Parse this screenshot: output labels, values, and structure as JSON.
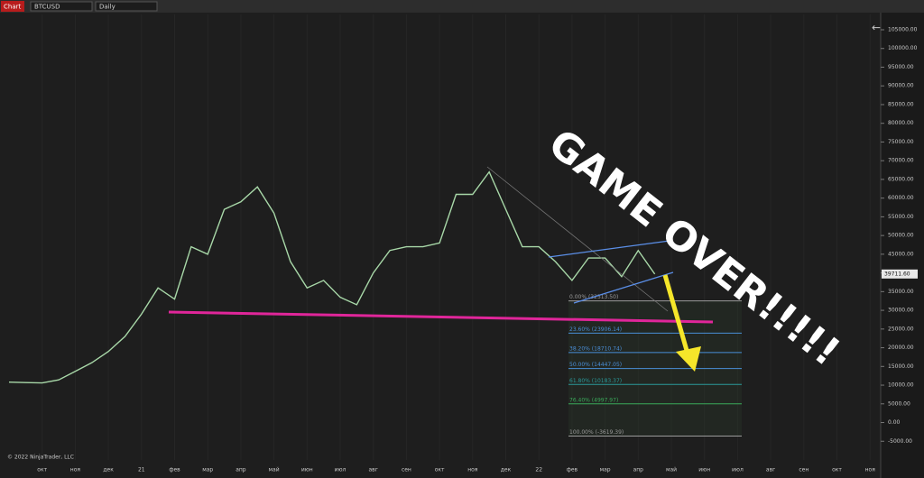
{
  "toolbar": {
    "tab": "Chart",
    "symbol": "BTCUSD",
    "period": "Daily"
  },
  "copyright": "© 2022 NinjaTrader, LLC",
  "annotation": "GAME OVER!!!!!",
  "chart_data": {
    "type": "line",
    "categories": [
      null,
      null,
      "окт",
      null,
      "ноя",
      null,
      "дек",
      null,
      "21",
      null,
      "фев",
      null,
      "мар",
      null,
      "апр",
      null,
      "май",
      null,
      "июн",
      null,
      "июл",
      null,
      "авг",
      null,
      "сен",
      null,
      "окт",
      null,
      "ноя",
      null,
      "дек",
      null,
      "22",
      null,
      "фев",
      null,
      "мар",
      null,
      "апр",
      null,
      "май",
      null,
      "июн",
      null,
      "июл",
      null,
      "авг",
      null,
      "сен",
      null,
      "окт",
      null,
      "ноя"
    ],
    "series": [
      {
        "name": "BTCUSD",
        "color": "#a8d8a8",
        "values": [
          10800,
          10700,
          10600,
          11400,
          13700,
          16000,
          19000,
          23000,
          29000,
          36000,
          33000,
          47000,
          45000,
          57000,
          59000,
          63000,
          56000,
          43000,
          36000,
          38000,
          33500,
          31500,
          40000,
          46000,
          47000,
          47000,
          48000,
          61000,
          61000,
          67000,
          57000,
          47000,
          47000,
          43000,
          38000,
          44000,
          44000,
          39000,
          46000,
          39700,
          null,
          null,
          null,
          null,
          null,
          null,
          null,
          null,
          null,
          null,
          null,
          null,
          null
        ]
      }
    ],
    "ylim": [
      -10000,
      109100
    ],
    "yticks": [
      {
        "value": -5000,
        "label": "-5000.00"
      },
      {
        "value": 0,
        "label": "0.00"
      },
      {
        "value": 5000,
        "label": "5000.00"
      },
      {
        "value": 10000,
        "label": "10000.00"
      },
      {
        "value": 15000,
        "label": "15000.00"
      },
      {
        "value": 20000,
        "label": "20000.00"
      },
      {
        "value": 25000,
        "label": "25000.00"
      },
      {
        "value": 30000,
        "label": "30000.00"
      },
      {
        "value": 35000,
        "label": "35000.00"
      },
      {
        "value": 40000,
        "label": "40000.00"
      },
      {
        "value": 45000,
        "label": "45000.00"
      },
      {
        "value": 50000,
        "label": "50000.00"
      },
      {
        "value": 55000,
        "label": "55000.00"
      },
      {
        "value": 60000,
        "label": "60000.00"
      },
      {
        "value": 65000,
        "label": "65000.00"
      },
      {
        "value": 70000,
        "label": "70000.00"
      },
      {
        "value": 75000,
        "label": "75000.00"
      },
      {
        "value": 80000,
        "label": "80000.00"
      },
      {
        "value": 85000,
        "label": "85000.00"
      },
      {
        "value": 90000,
        "label": "90000.00"
      },
      {
        "value": 95000,
        "label": "95000.00"
      },
      {
        "value": 100000,
        "label": "100000.00"
      },
      {
        "value": 105000,
        "label": "105000.00"
      }
    ],
    "last_price": {
      "value": 39711.6,
      "label": "39711.60"
    },
    "fib_levels": [
      {
        "value": 32513.5,
        "label": "0.00% (32513.50)",
        "color": "#9a9a9a"
      },
      {
        "value": 23906.14,
        "label": "23.60% (23906.14)",
        "color": "#4a8fd8"
      },
      {
        "value": 18710.74,
        "label": "38.20% (18710.74)",
        "color": "#4a8fd8"
      },
      {
        "value": 14447.05,
        "label": "50.00% (14447.05)",
        "color": "#4a8fd8"
      },
      {
        "value": 10183.37,
        "label": "61.80% (10183.37)",
        "color": "#2a9a9a"
      },
      {
        "value": 4997.97,
        "label": "76.40% (4997.97)",
        "color": "#3aaa5a"
      },
      {
        "value": -3619.39,
        "label": "100.00% (-3619.39)",
        "color": "#9a9a9a"
      }
    ]
  }
}
